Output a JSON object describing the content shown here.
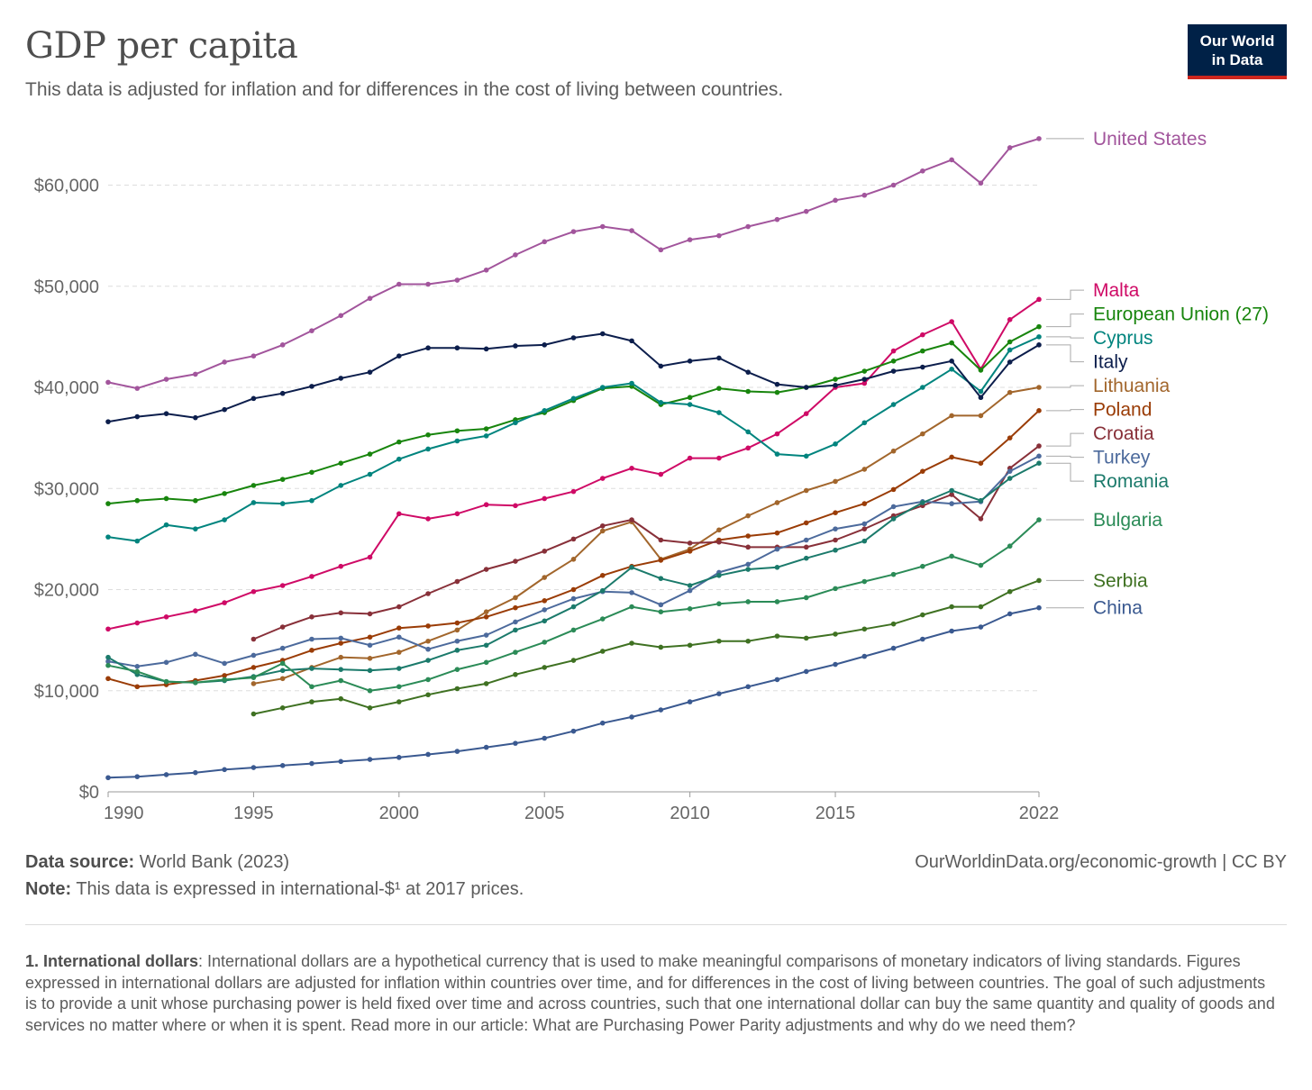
{
  "header": {
    "title": "GDP per capita",
    "subtitle": "This data is adjusted for inflation and for differences in the cost of living between countries.",
    "logo_line1": "Our World",
    "logo_line2": "in Data"
  },
  "footer": {
    "source_label": "Data source:",
    "source_text": "World Bank (2023)",
    "note_label": "Note:",
    "note_text": "This data is expressed in international-$¹ at 2017 prices.",
    "link_text": "OurWorldinData.org/economic-growth | CC BY",
    "footnote_label": "1. International dollars",
    "footnote_text": ": International dollars are a hypothetical currency that is used to make meaningful comparisons of monetary indicators of living standards. Figures expressed in international dollars are adjusted for inflation within countries over time, and for differences in the cost of living between countries. The goal of such adjustments is to provide a unit whose purchasing power is held fixed over time and across countries, such that one international dollar can buy the same quantity and quality of goods and services no matter where or when it is spent. Read more in our article: What are Purchasing Power Parity adjustments and why do we need them?"
  },
  "colors": {
    "brand_bg": "#002147",
    "brand_accent": "#ce261e"
  },
  "chart_data": {
    "type": "line",
    "title": "GDP per capita",
    "subtitle": "This data is adjusted for inflation and for differences in the cost of living between countries.",
    "x_range": [
      1990,
      2022
    ],
    "ylim": [
      0,
      65000
    ],
    "x_ticks": [
      1990,
      1995,
      2000,
      2005,
      2010,
      2015,
      2022
    ],
    "x_tick_labels": [
      "1990",
      "1995",
      "2000",
      "2005",
      "2010",
      "2015",
      "2022"
    ],
    "y_ticks": [
      0,
      10000,
      20000,
      30000,
      40000,
      50000,
      60000
    ],
    "y_tick_labels": [
      "$0",
      "$10,000",
      "$20,000",
      "$30,000",
      "$40,000",
      "$50,000",
      "$60,000"
    ],
    "grid": "horizontal dashed",
    "legend": "right, labels at line ends",
    "series": [
      {
        "name": "United States",
        "color": "#a2559c",
        "start": 1990,
        "values": [
          40500,
          39900,
          40800,
          41300,
          42500,
          43100,
          44200,
          45600,
          47100,
          48800,
          50200,
          50200,
          50600,
          51600,
          53100,
          54400,
          55400,
          55900,
          55500,
          53600,
          54600,
          55000,
          55900,
          56600,
          57400,
          58500,
          59000,
          60000,
          61400,
          62500,
          60200,
          63700,
          64600
        ]
      },
      {
        "name": "Malta",
        "color": "#cf0a66",
        "start": 1990,
        "values": [
          16100,
          16700,
          17300,
          17900,
          18700,
          19800,
          20400,
          21300,
          22300,
          23200,
          27500,
          27000,
          27500,
          28400,
          28300,
          29000,
          29700,
          31000,
          32000,
          31400,
          33000,
          33000,
          34000,
          35400,
          37400,
          40000,
          40400,
          43600,
          45200,
          46500,
          41800,
          46700,
          48700
        ]
      },
      {
        "name": "European Union (27)",
        "color": "#18850d",
        "start": 1990,
        "values": [
          28500,
          28800,
          29000,
          28800,
          29500,
          30300,
          30900,
          31600,
          32500,
          33400,
          34600,
          35300,
          35700,
          35900,
          36800,
          37500,
          38700,
          39900,
          40100,
          38300,
          39000,
          39900,
          39600,
          39500,
          40000,
          40800,
          41600,
          42600,
          43600,
          44400,
          41700,
          44500,
          46000
        ]
      },
      {
        "name": "Cyprus",
        "color": "#00847e",
        "start": 1990,
        "values": [
          25200,
          24800,
          26400,
          26000,
          26900,
          28600,
          28500,
          28800,
          30300,
          31400,
          32900,
          33900,
          34700,
          35200,
          36500,
          37700,
          38900,
          40000,
          40400,
          38500,
          38300,
          37500,
          35600,
          33400,
          33200,
          34400,
          36500,
          38300,
          40000,
          41800,
          39600,
          43700,
          45000
        ]
      },
      {
        "name": "Italy",
        "color": "#0c1e4c",
        "start": 1990,
        "values": [
          36600,
          37100,
          37400,
          37000,
          37800,
          38900,
          39400,
          40100,
          40900,
          41500,
          43100,
          43900,
          43900,
          43800,
          44100,
          44200,
          44900,
          45300,
          44600,
          42100,
          42600,
          42900,
          41500,
          40300,
          40000,
          40200,
          40800,
          41600,
          42000,
          42600,
          39000,
          42500,
          44200
        ]
      },
      {
        "name": "Lithuania",
        "color": "#a2662c",
        "start": 1995,
        "values": [
          10700,
          11200,
          12300,
          13300,
          13200,
          13800,
          14900,
          16000,
          17800,
          19200,
          21200,
          23000,
          25800,
          26700,
          23000,
          24000,
          25900,
          27300,
          28600,
          29800,
          30700,
          31900,
          33700,
          35400,
          37200,
          37200,
          39500,
          40000
        ]
      },
      {
        "name": "Poland",
        "color": "#9a3c06",
        "start": 1990,
        "values": [
          11200,
          10400,
          10600,
          11000,
          11500,
          12300,
          13000,
          14000,
          14700,
          15300,
          16200,
          16400,
          16700,
          17300,
          18200,
          18900,
          20000,
          21400,
          22300,
          22900,
          23800,
          24900,
          25300,
          25600,
          26600,
          27600,
          28500,
          29900,
          31700,
          33100,
          32500,
          35000,
          37700
        ]
      },
      {
        "name": "Croatia",
        "color": "#883039",
        "start": 1995,
        "values": [
          15100,
          16300,
          17300,
          17700,
          17600,
          18300,
          19600,
          20800,
          22000,
          22800,
          23800,
          25000,
          26300,
          26900,
          24900,
          24600,
          24700,
          24200,
          24200,
          24200,
          24900,
          26000,
          27300,
          28300,
          29400,
          27000,
          32000,
          34200
        ]
      },
      {
        "name": "Turkey",
        "color": "#4c6a9c",
        "start": 1990,
        "values": [
          12900,
          12400,
          12800,
          13600,
          12700,
          13500,
          14200,
          15100,
          15200,
          14500,
          15300,
          14100,
          14900,
          15500,
          16800,
          18000,
          19100,
          19800,
          19700,
          18500,
          19900,
          21700,
          22500,
          24000,
          24900,
          26000,
          26500,
          28200,
          28700,
          28500,
          28700,
          31700,
          33200
        ]
      },
      {
        "name": "Romania",
        "color": "#1b7a6b",
        "start": 1990,
        "values": [
          13300,
          11600,
          10900,
          10800,
          11000,
          11400,
          12000,
          12200,
          12100,
          12000,
          12200,
          13000,
          14000,
          14500,
          16000,
          16900,
          18300,
          19900,
          22200,
          21100,
          20400,
          21400,
          22000,
          22200,
          23100,
          23900,
          24800,
          27000,
          28600,
          29800,
          28800,
          31000,
          32500
        ]
      },
      {
        "name": "Bulgaria",
        "color": "#2b8b57",
        "start": 1990,
        "values": [
          12500,
          11900,
          10900,
          10800,
          11100,
          11300,
          12700,
          10400,
          11000,
          10000,
          10400,
          11100,
          12100,
          12800,
          13800,
          14800,
          16000,
          17100,
          18300,
          17800,
          18100,
          18600,
          18800,
          18800,
          19200,
          20100,
          20800,
          21500,
          22300,
          23300,
          22400,
          24300,
          26900
        ]
      },
      {
        "name": "Serbia",
        "color": "#3f7122",
        "start": 1995,
        "values": [
          7700,
          8300,
          8900,
          9200,
          8300,
          8900,
          9600,
          10200,
          10700,
          11600,
          12300,
          13000,
          13900,
          14700,
          14300,
          14500,
          14900,
          14900,
          15400,
          15200,
          15600,
          16100,
          16600,
          17500,
          18300,
          18300,
          19800,
          20900
        ]
      },
      {
        "name": "China",
        "color": "#3a5990",
        "start": 1990,
        "values": [
          1400,
          1500,
          1700,
          1900,
          2200,
          2400,
          2600,
          2800,
          3000,
          3200,
          3400,
          3700,
          4000,
          4400,
          4800,
          5300,
          6000,
          6800,
          7400,
          8100,
          8900,
          9700,
          10400,
          11100,
          11900,
          12600,
          13400,
          14200,
          15100,
          15900,
          16300,
          17600,
          18200
        ]
      }
    ]
  }
}
